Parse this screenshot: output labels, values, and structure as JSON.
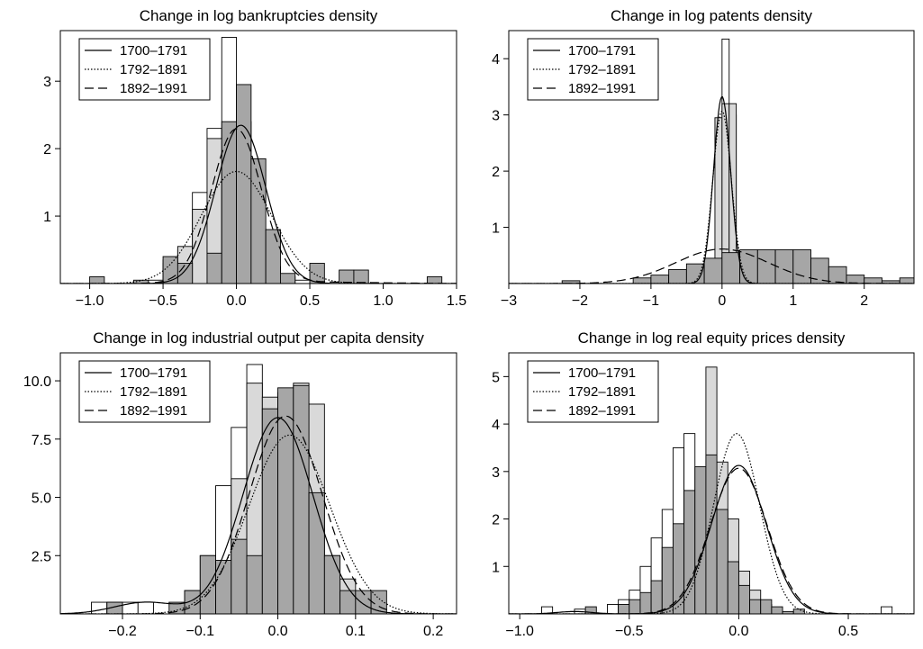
{
  "legend_series": [
    {
      "name": "1700–1791",
      "dash": "none"
    },
    {
      "name": "1792–1891",
      "dash": "1.5,2"
    },
    {
      "name": "1892–1991",
      "dash": "10,5"
    }
  ],
  "colors": {
    "fill_white": "#ffffff",
    "fill_light": "#d9d9d9",
    "fill_dark": "#a6a6a6",
    "stroke": "#000000"
  },
  "chart_data": [
    {
      "type": "histogram-density",
      "title": "Change in log bankruptcies density",
      "xlim": [
        -1.2,
        1.5
      ],
      "ylim": [
        0,
        3.75
      ],
      "xticks": [
        -1.0,
        -0.5,
        0.0,
        0.5,
        1.0,
        1.5
      ],
      "xtick_labels": [
        "−1.0",
        "−0.5",
        "0.0",
        "0.5",
        "1.0",
        "1.5"
      ],
      "yticks": [
        1,
        2,
        3
      ],
      "ytick_labels": [
        "1",
        "2",
        "3"
      ],
      "legend_position": "top-left",
      "bin_width": 0.1,
      "bins": [
        {
          "name": "1700–1791",
          "fill": "white",
          "edges_start": -0.6,
          "values": [
            0.05,
            0.35,
            0.5,
            1.35,
            2.3,
            3.65,
            2.4,
            0.6,
            0.25,
            0.1,
            0.05
          ]
        },
        {
          "name": "1792–1891",
          "fill": "light",
          "edges_start": -0.5,
          "values": [
            0.3,
            0.55,
            1.1,
            2.15,
            1.65,
            1.15,
            0.6,
            0.25
          ]
        },
        {
          "name": "1892–1991",
          "fill": "dark",
          "edges_start": -1.0,
          "values": [
            0.1,
            0,
            0,
            0.05,
            0,
            0.4,
            0.3,
            0,
            0.45,
            2.4,
            2.95,
            1.85,
            0.8,
            0.15,
            0,
            0.3,
            0,
            0.2,
            0.2,
            0,
            0,
            0,
            0,
            0.1
          ]
        }
      ],
      "curves": [
        {
          "name": "1700–1791",
          "type": "normal",
          "mean": 0.03,
          "sd": 0.17,
          "weight": 1.0
        },
        {
          "name": "1792–1891",
          "type": "normal",
          "mean": 0.0,
          "sd": 0.24,
          "weight": 1.0
        },
        {
          "name": "1892–1991",
          "type": "normal",
          "mean": 0.0,
          "sd": 0.17,
          "weight": 0.97,
          "tail_mean": 0.4,
          "tail_sd": 0.5,
          "tail_weight": 0.03
        }
      ]
    },
    {
      "type": "histogram-density",
      "title": "Change in log patents density",
      "xlim": [
        -3,
        2.7
      ],
      "ylim": [
        0,
        4.5
      ],
      "xticks": [
        -3,
        -2,
        -1,
        0,
        1,
        2
      ],
      "xtick_labels": [
        "−3",
        "−2",
        "−1",
        "0",
        "1",
        "2"
      ],
      "yticks": [
        1,
        2,
        3,
        4
      ],
      "ytick_labels": [
        "1",
        "2",
        "3",
        "4"
      ],
      "legend_position": "top-left",
      "bin_width": 0.1,
      "bins": [
        {
          "name": "1700–1791",
          "fill": "white",
          "edges_start": -0.3,
          "values": [
            0.15,
            0.4,
            2.6,
            4.35,
            3.0,
            0.5
          ]
        },
        {
          "name": "1792–1891",
          "fill": "light",
          "edges_start": -0.3,
          "values": [
            0.1,
            0.3,
            2.95,
            3.2,
            3.2,
            0.4
          ]
        },
        {
          "name": "1892–1991",
          "fill": "dark",
          "edges_start": -2.25,
          "bin_width": 0.25,
          "values": [
            0.05,
            0,
            0,
            0,
            0.1,
            0.15,
            0.25,
            0.35,
            0.45,
            0.55,
            0.6,
            0.6,
            0.6,
            0.6,
            0.45,
            0.3,
            0.15,
            0.1,
            0.05,
            0.1
          ]
        }
      ],
      "curves": [
        {
          "name": "1700–1791",
          "type": "normal",
          "mean": 0.0,
          "sd": 0.12,
          "weight": 1.0
        },
        {
          "name": "1792–1891",
          "type": "normal",
          "mean": 0.0,
          "sd": 0.13,
          "weight": 1.0
        },
        {
          "name": "1892–1991",
          "type": "normal",
          "mean": 0.0,
          "sd": 0.65,
          "weight": 1.0
        }
      ]
    },
    {
      "type": "histogram-density",
      "title": "Change in log industrial output per capita density",
      "xlim": [
        -0.28,
        0.23
      ],
      "ylim": [
        0,
        11.2
      ],
      "xticks": [
        -0.2,
        -0.1,
        0.0,
        0.1,
        0.2
      ],
      "xtick_labels": [
        "−0.2",
        "−0.1",
        "0.0",
        "0.1",
        "0.2"
      ],
      "yticks": [
        2.5,
        5.0,
        7.5,
        10.0
      ],
      "ytick_labels": [
        "2.5",
        "5.0",
        "7.5",
        "10.0"
      ],
      "legend_position": "top-left",
      "bin_width": 0.02,
      "bins": [
        {
          "name": "1700–1791",
          "fill": "white",
          "edges_start": -0.24,
          "values": [
            0.5,
            0.5,
            0.5,
            0.5,
            0,
            0,
            1.0,
            2.5,
            5.5,
            8.0,
            10.7,
            9.0,
            5.0,
            2.0,
            0.5,
            0.5,
            0.5,
            0.5
          ]
        },
        {
          "name": "1792–1891",
          "fill": "light",
          "edges_start": -0.1,
          "values": [
            1.0,
            1.5,
            5.8,
            9.9,
            9.3,
            9.5,
            9.9,
            9.0,
            2.5,
            1.5
          ]
        },
        {
          "name": "1892–1991",
          "fill": "dark",
          "edges_start": -0.22,
          "values": [
            0.5,
            0,
            0,
            0,
            0.5,
            1.0,
            2.5,
            2.3,
            3.2,
            2.5,
            8.8,
            9.7,
            9.8,
            5.2,
            2.5,
            1.0,
            1.0,
            1.0
          ]
        }
      ],
      "curves": [
        {
          "name": "1700–1791",
          "type": "normal",
          "mean": 0.0,
          "sd": 0.045,
          "weight": 0.95,
          "tail_mean": -0.17,
          "tail_sd": 0.04,
          "tail_weight": 0.05
        },
        {
          "name": "1792–1891",
          "type": "normal",
          "mean": 0.015,
          "sd": 0.052,
          "weight": 1.0
        },
        {
          "name": "1892–1991",
          "type": "normal",
          "mean": 0.01,
          "sd": 0.047,
          "weight": 1.0
        }
      ]
    },
    {
      "type": "histogram-density",
      "title": "Change in log real equity prices density",
      "xlim": [
        -1.05,
        0.8
      ],
      "ylim": [
        0,
        5.5
      ],
      "xticks": [
        -1.0,
        -0.5,
        0.0,
        0.5
      ],
      "xtick_labels": [
        "−1.0",
        "−0.5",
        "0.0",
        "0.5"
      ],
      "yticks": [
        1,
        2,
        3,
        4,
        5
      ],
      "ytick_labels": [
        "1",
        "2",
        "3",
        "4",
        "5"
      ],
      "legend_position": "top-left",
      "bin_width": 0.05,
      "bins": [
        {
          "name": "1700–1791",
          "fill": "white",
          "edges_start": -0.9,
          "values": [
            0.15,
            0,
            0,
            0.1,
            0,
            0,
            0.2,
            0.3,
            0.5,
            1.0,
            1.6,
            2.2,
            3.5,
            3.8,
            2.3,
            1.2,
            0.4,
            0.2,
            0.1,
            0,
            0,
            0,
            0,
            0,
            0,
            0,
            0,
            0,
            0,
            0,
            0,
            0.15
          ]
        },
        {
          "name": "1792–1891",
          "fill": "light",
          "edges_start": -0.3,
          "values": [
            0.55,
            1.0,
            1.8,
            5.2,
            3.2,
            2.0,
            0.9,
            0.5,
            0.2
          ]
        },
        {
          "name": "1892–1991",
          "fill": "dark",
          "edges_start": -0.7,
          "values": [
            0.15,
            0,
            0,
            0.2,
            0.3,
            0.45,
            0.7,
            1.4,
            1.9,
            2.6,
            3.1,
            3.35,
            2.2,
            1.1,
            0.6,
            0.3,
            0.3,
            0.15,
            0.05,
            0.1
          ]
        }
      ],
      "curves": [
        {
          "name": "1700–1791",
          "type": "normal",
          "mean": 0.0,
          "sd": 0.125,
          "weight": 0.98,
          "tail_mean": -0.75,
          "tail_sd": 0.08,
          "tail_weight": 0.01
        },
        {
          "name": "1792–1891",
          "type": "normal",
          "mean": -0.01,
          "sd": 0.105,
          "weight": 1.0
        },
        {
          "name": "1892–1991",
          "type": "normal",
          "mean": 0.0,
          "sd": 0.13,
          "weight": 1.0
        }
      ]
    }
  ]
}
